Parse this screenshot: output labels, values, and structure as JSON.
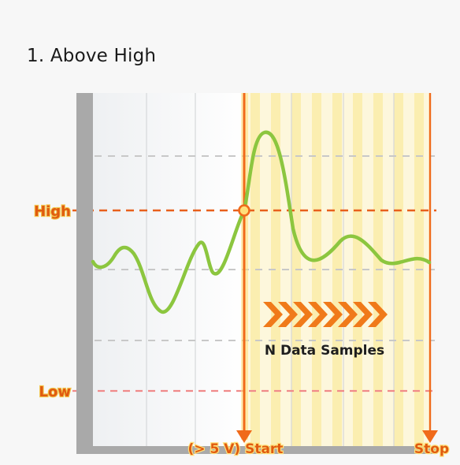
{
  "title": "1. Above High",
  "levels": {
    "high": "High",
    "low": "Low"
  },
  "annotations": {
    "start": "(> 5 V) Start",
    "stop": "Stop",
    "samples": "N Data Samples"
  },
  "colors": {
    "signal": "#8cc63f",
    "trigger_line": "#f06a1a",
    "high_level": "#e8601c",
    "low_level": "#f08a8a",
    "sample_stripes": "#fbeeb0",
    "arrows": "#f07a1a"
  },
  "icons": {
    "samples_direction": "chevrons-right-icon"
  }
}
